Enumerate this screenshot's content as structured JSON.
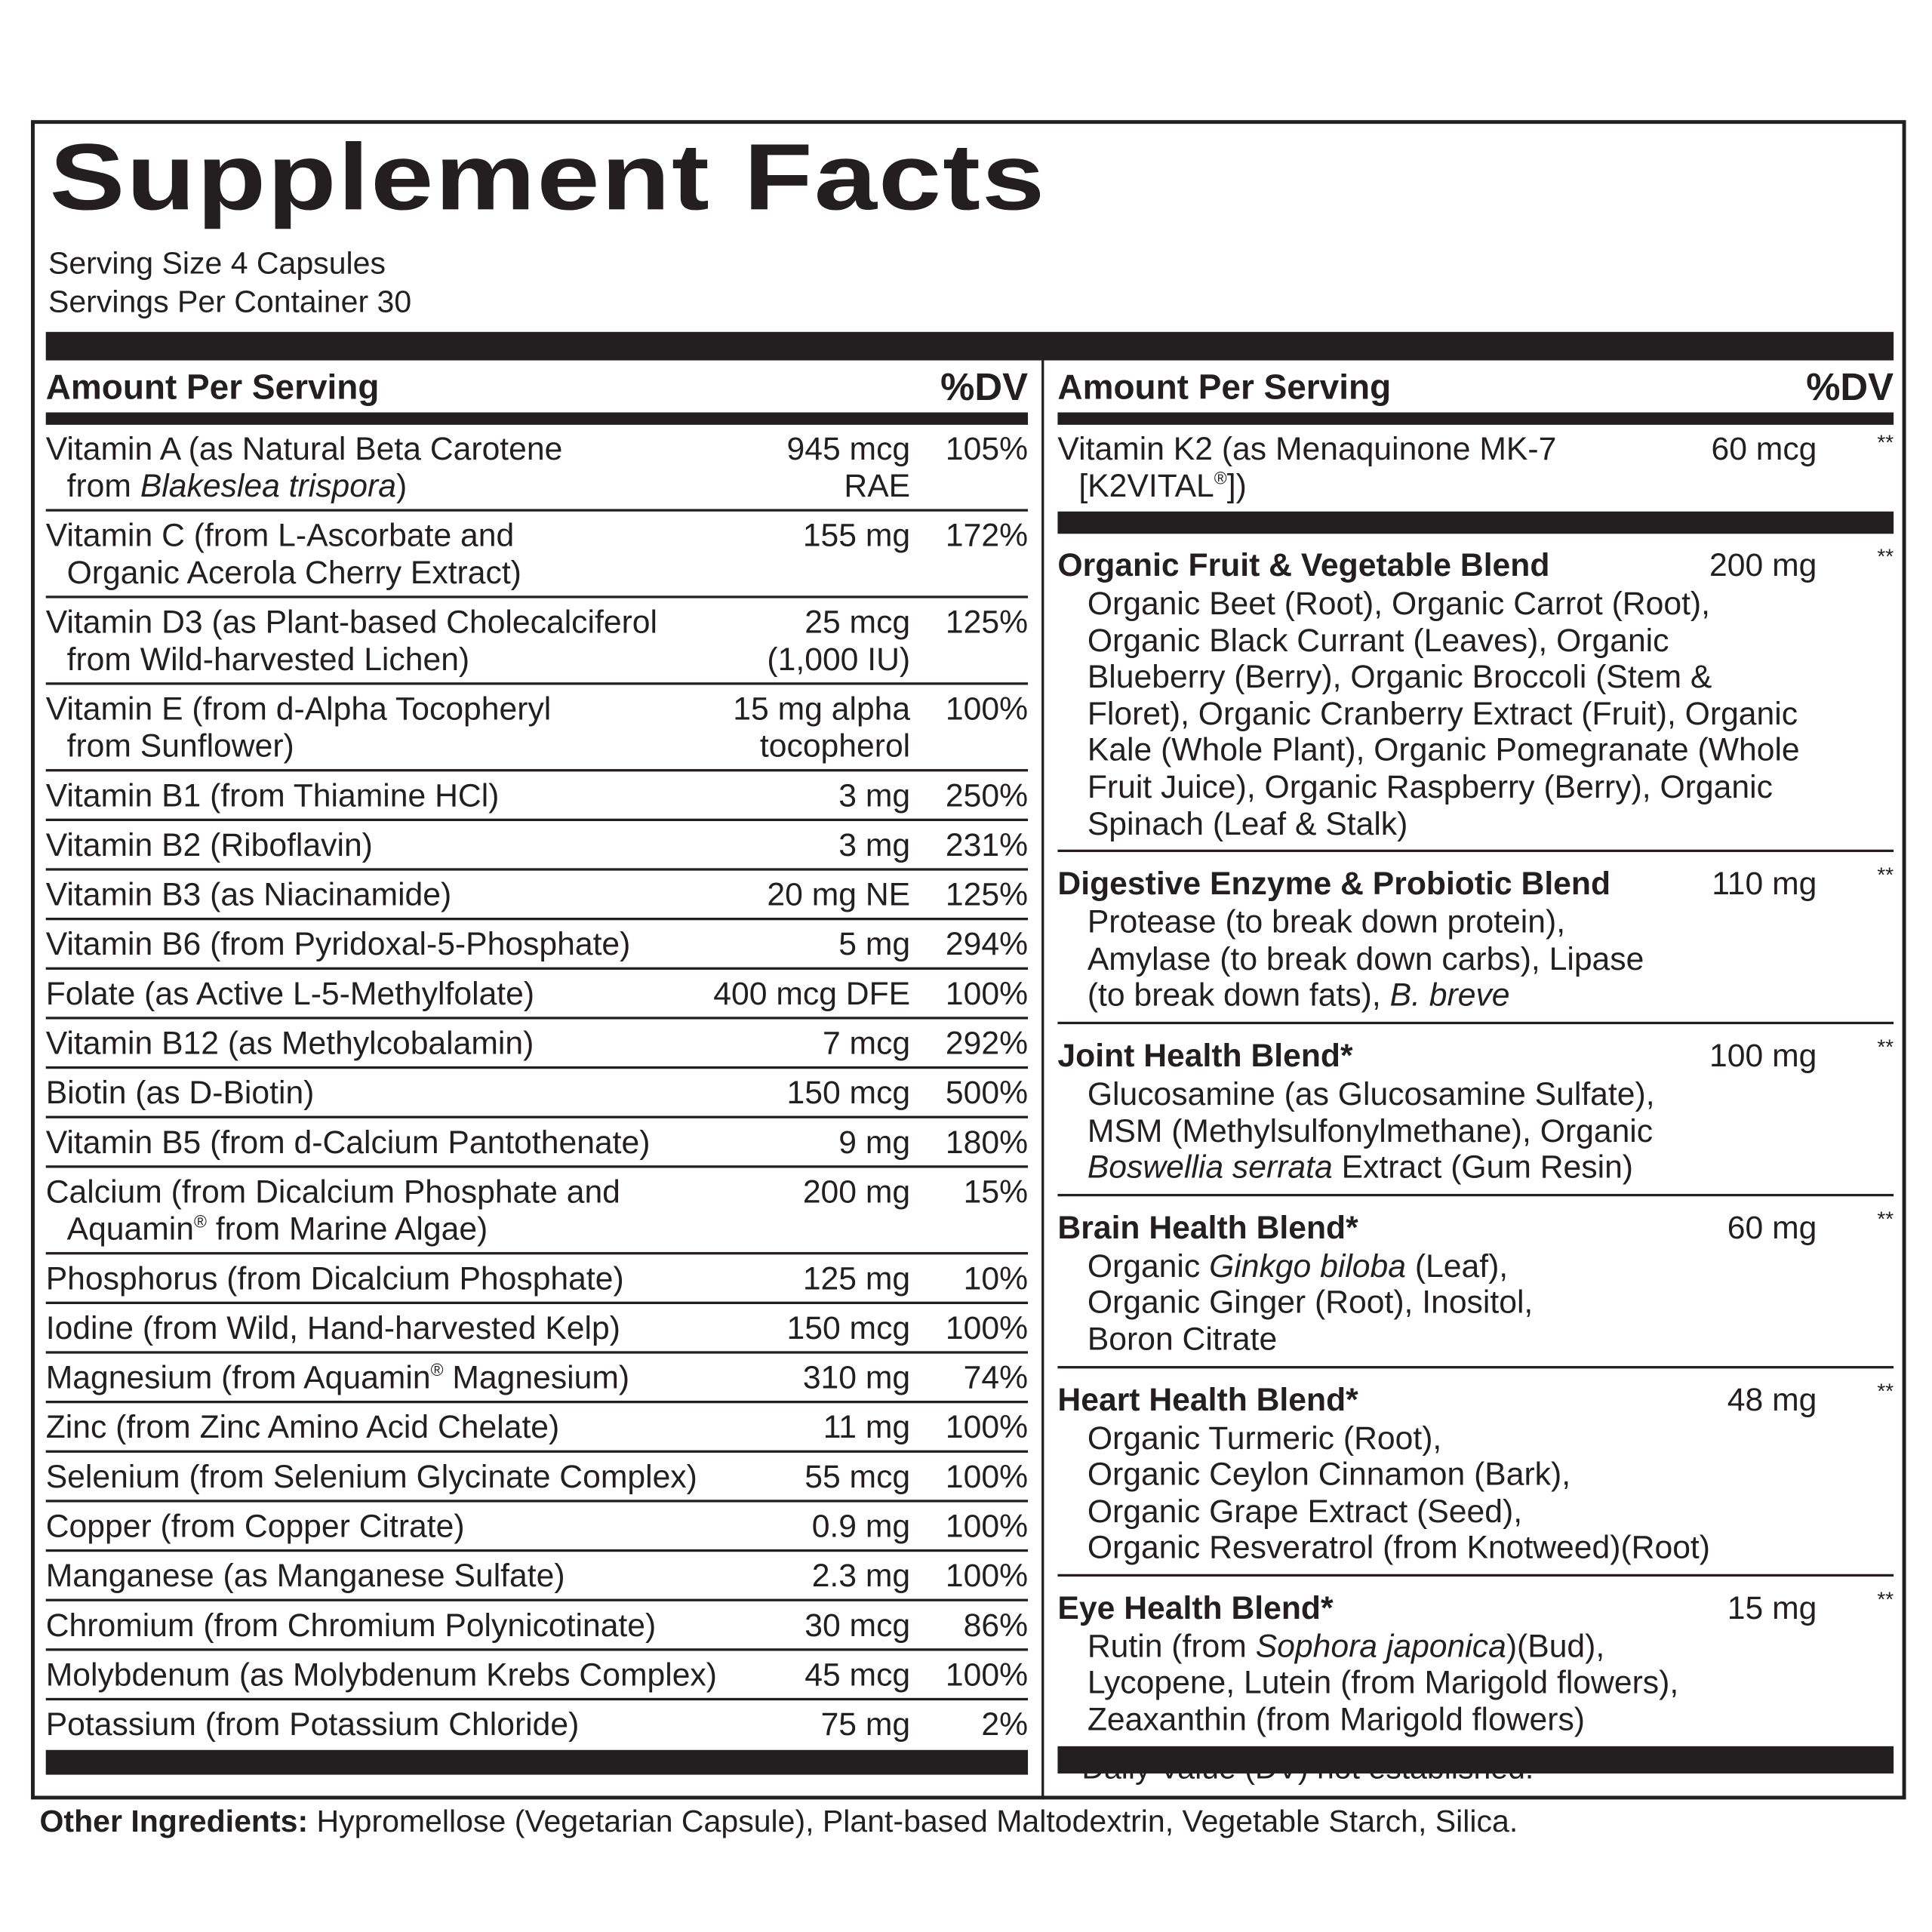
{
  "title": "Supplement Facts",
  "serving_size": "Serving Size 4 Capsules",
  "servings_per_container": "Servings Per Container 30",
  "header": {
    "amount": "Amount Per Serving",
    "dv": "%DV"
  },
  "left_rows": [
    {
      "name": [
        [
          [
            "Vitamin A (as Natural Beta Carotene",
            ""
          ]
        ],
        [
          [
            "from ",
            ""
          ],
          [
            "Blakeslea trispora",
            "i"
          ],
          [
            ")",
            ""
          ]
        ]
      ],
      "amount": [
        "945 mcg",
        "RAE"
      ],
      "dv": "105%"
    },
    {
      "name": [
        [
          [
            "Vitamin C (from L-Ascorbate and",
            ""
          ]
        ],
        [
          [
            "Organic Acerola Cherry Extract)",
            ""
          ]
        ]
      ],
      "amount": [
        "155 mg"
      ],
      "dv": "172%"
    },
    {
      "name": [
        [
          [
            "Vitamin D3 (as Plant-based Cholecalciferol",
            ""
          ]
        ],
        [
          [
            "from Wild-harvested Lichen)",
            ""
          ]
        ]
      ],
      "amount": [
        "25 mcg",
        "(1,000 IU)"
      ],
      "dv": "125%"
    },
    {
      "name": [
        [
          [
            "Vitamin E (from d-Alpha Tocopheryl",
            ""
          ]
        ],
        [
          [
            "from Sunflower)",
            ""
          ]
        ]
      ],
      "amount": [
        "15 mg alpha",
        "tocopherol"
      ],
      "dv": "100%"
    },
    {
      "name": [
        [
          [
            "Vitamin B1 (from Thiamine HCl)",
            ""
          ]
        ]
      ],
      "amount": [
        "3 mg"
      ],
      "dv": "250%"
    },
    {
      "name": [
        [
          [
            "Vitamin B2 (Riboflavin)",
            ""
          ]
        ]
      ],
      "amount": [
        "3 mg"
      ],
      "dv": "231%"
    },
    {
      "name": [
        [
          [
            "Vitamin B3 (as Niacinamide)",
            ""
          ]
        ]
      ],
      "amount": [
        "20 mg NE"
      ],
      "dv": "125%"
    },
    {
      "name": [
        [
          [
            "Vitamin B6 (from Pyridoxal-5-Phosphate)",
            ""
          ]
        ]
      ],
      "amount": [
        "5 mg"
      ],
      "dv": "294%"
    },
    {
      "name": [
        [
          [
            "Folate (as Active L-5-Methylfolate)",
            ""
          ]
        ]
      ],
      "amount": [
        "400 mcg DFE"
      ],
      "dv": "100%"
    },
    {
      "name": [
        [
          [
            "Vitamin B12 (as Methylcobalamin)",
            ""
          ]
        ]
      ],
      "amount": [
        "7 mcg"
      ],
      "dv": "292%"
    },
    {
      "name": [
        [
          [
            "Biotin (as D-Biotin)",
            ""
          ]
        ]
      ],
      "amount": [
        "150 mcg"
      ],
      "dv": "500%"
    },
    {
      "name": [
        [
          [
            "Vitamin B5 (from d-Calcium Pantothenate)",
            ""
          ]
        ]
      ],
      "amount": [
        "9 mg"
      ],
      "dv": "180%"
    },
    {
      "name": [
        [
          [
            "Calcium (from Dicalcium Phosphate and",
            ""
          ]
        ],
        [
          [
            "Aquamin",
            ""
          ],
          [
            "®",
            "sup"
          ],
          [
            " from Marine Algae)",
            ""
          ]
        ]
      ],
      "amount": [
        "200 mg"
      ],
      "dv": "15%"
    },
    {
      "name": [
        [
          [
            "Phosphorus (from Dicalcium Phosphate)",
            ""
          ]
        ]
      ],
      "amount": [
        "125 mg"
      ],
      "dv": "10%"
    },
    {
      "name": [
        [
          [
            "Iodine (from Wild, Hand-harvested Kelp)",
            ""
          ]
        ]
      ],
      "amount": [
        "150 mcg"
      ],
      "dv": "100%"
    },
    {
      "name": [
        [
          [
            "Magnesium (from Aquamin",
            ""
          ],
          [
            "®",
            "sup"
          ],
          [
            " Magnesium)",
            ""
          ]
        ]
      ],
      "amount": [
        "310 mg"
      ],
      "dv": "74%"
    },
    {
      "name": [
        [
          [
            "Zinc (from Zinc Amino Acid Chelate)",
            ""
          ]
        ]
      ],
      "amount": [
        "11 mg"
      ],
      "dv": "100%"
    },
    {
      "name": [
        [
          [
            "Selenium (from Selenium Glycinate Complex)",
            ""
          ]
        ]
      ],
      "amount": [
        "55 mcg"
      ],
      "dv": "100%"
    },
    {
      "name": [
        [
          [
            "Copper (from Copper Citrate)",
            ""
          ]
        ]
      ],
      "amount": [
        "0.9 mg"
      ],
      "dv": "100%"
    },
    {
      "name": [
        [
          [
            "Manganese (as Manganese Sulfate)",
            ""
          ]
        ]
      ],
      "amount": [
        "2.3 mg"
      ],
      "dv": "100%"
    },
    {
      "name": [
        [
          [
            "Chromium (from Chromium Polynicotinate)",
            ""
          ]
        ]
      ],
      "amount": [
        "30 mcg"
      ],
      "dv": "86%"
    },
    {
      "name": [
        [
          [
            "Molybdenum (as Molybdenum Krebs Complex)",
            ""
          ]
        ]
      ],
      "amount": [
        "45 mcg"
      ],
      "dv": "100%"
    },
    {
      "name": [
        [
          [
            "Potassium (from Potassium Chloride)",
            ""
          ]
        ]
      ],
      "amount": [
        "75 mg"
      ],
      "dv": "2%"
    }
  ],
  "k2": {
    "name": [
      [
        [
          "Vitamin K2 (as Menaquinone MK-7",
          ""
        ]
      ],
      [
        [
          "[K2VITAL",
          ""
        ],
        [
          "®",
          "sup"
        ],
        [
          "])",
          ""
        ]
      ]
    ],
    "amount": "60 mcg",
    "dv": "**"
  },
  "blends": [
    {
      "name": "Organic Fruit & Vegetable Blend",
      "amount": "200 mg",
      "dv": "**",
      "desc": [
        [
          [
            "Organic Beet (Root), Organic Carrot (Root),",
            ""
          ]
        ],
        [
          [
            "Organic Black Currant (Leaves), Organic",
            ""
          ]
        ],
        [
          [
            "Blueberry (Berry), Organic Broccoli (Stem &",
            ""
          ]
        ],
        [
          [
            "Floret), Organic Cranberry Extract (Fruit), Organic",
            ""
          ]
        ],
        [
          [
            "Kale (Whole Plant), Organic Pomegranate (Whole",
            ""
          ]
        ],
        [
          [
            "Fruit Juice), Organic Raspberry (Berry), Organic",
            ""
          ]
        ],
        [
          [
            "Spinach (Leaf & Stalk)",
            ""
          ]
        ]
      ]
    },
    {
      "name": "Digestive Enzyme & Probiotic Blend",
      "amount": "110 mg",
      "dv": "**",
      "desc": [
        [
          [
            "Protease (to break down protein),",
            ""
          ]
        ],
        [
          [
            "Amylase (to break down carbs), Lipase",
            ""
          ]
        ],
        [
          [
            "(to break down fats), ",
            ""
          ],
          [
            "B. breve",
            "i"
          ]
        ]
      ]
    },
    {
      "name": "Joint Health Blend*",
      "amount": "100 mg",
      "dv": "**",
      "desc": [
        [
          [
            "Glucosamine (as Glucosamine Sulfate),",
            ""
          ]
        ],
        [
          [
            "MSM (Methylsulfonylmethane), Organic",
            ""
          ]
        ],
        [
          [
            "Boswellia serrata",
            "i"
          ],
          [
            " Extract (Gum Resin)",
            ""
          ]
        ]
      ]
    },
    {
      "name": "Brain Health Blend*",
      "amount": "60 mg",
      "dv": "**",
      "desc": [
        [
          [
            "Organic ",
            ""
          ],
          [
            "Ginkgo biloba",
            "i"
          ],
          [
            " (Leaf),",
            ""
          ]
        ],
        [
          [
            "Organic Ginger (Root), Inositol,",
            ""
          ]
        ],
        [
          [
            "Boron Citrate",
            ""
          ]
        ]
      ]
    },
    {
      "name": "Heart Health Blend*",
      "amount": "48 mg",
      "dv": "**",
      "desc": [
        [
          [
            "Organic Turmeric (Root),",
            ""
          ]
        ],
        [
          [
            "Organic Ceylon Cinnamon (Bark),",
            ""
          ]
        ],
        [
          [
            "Organic Grape Extract (Seed),",
            ""
          ]
        ],
        [
          [
            "Organic Resveratrol (from Knotweed)(Root)",
            ""
          ]
        ]
      ]
    },
    {
      "name": "Eye Health Blend*",
      "amount": "15 mg",
      "dv": "**",
      "desc": [
        [
          [
            "Rutin (from ",
            ""
          ],
          [
            "Sophora japonica",
            "i"
          ],
          [
            ")(Bud),",
            ""
          ]
        ],
        [
          [
            "Lycopene, Lutein (from Marigold flowers),",
            ""
          ]
        ],
        [
          [
            "Zeaxanthin (from Marigold flowers)",
            ""
          ]
        ]
      ]
    }
  ],
  "footnote": "**Daily Value (DV) not established.",
  "other_ingredients": {
    "label": "Other Ingredients:",
    "text": " Hypromellose (Vegetarian Capsule), Plant-based Maltodextrin, Vegetable Starch, Silica."
  }
}
